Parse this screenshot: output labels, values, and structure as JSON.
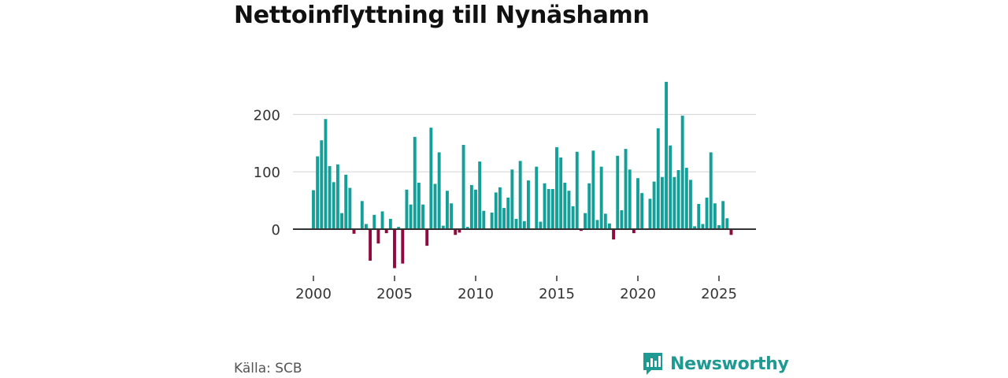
{
  "chart_data": {
    "type": "bar",
    "title": "Nettoinflyttning till Nynäshamn",
    "xlabel": "",
    "ylabel": "",
    "x_start": 2000,
    "x_step": 0.25,
    "ylim": [
      -70,
      260
    ],
    "x_ticks": [
      "2000",
      "2005",
      "2010",
      "2015",
      "2020",
      "2025"
    ],
    "y_ticks": [
      0,
      100,
      200
    ],
    "colors": {
      "positive": "#14a098",
      "negative": "#900a3e",
      "grid": "#d9d9d9",
      "zero_line": "#333333"
    },
    "values": [
      68,
      127,
      155,
      192,
      110,
      82,
      113,
      28,
      95,
      72,
      -8,
      0,
      49,
      9,
      -55,
      25,
      -25,
      31,
      -7,
      18,
      -68,
      4,
      -60,
      69,
      43,
      161,
      81,
      43,
      -29,
      177,
      79,
      134,
      6,
      67,
      45,
      -10,
      -6,
      147,
      4,
      77,
      69,
      118,
      32,
      0,
      29,
      64,
      73,
      37,
      55,
      104,
      18,
      119,
      14,
      85,
      0,
      109,
      13,
      80,
      70,
      70,
      143,
      125,
      81,
      67,
      40,
      135,
      -3,
      28,
      80,
      137,
      16,
      109,
      27,
      10,
      -18,
      128,
      33,
      140,
      104,
      -7,
      89,
      63,
      0,
      53,
      83,
      176,
      91,
      257,
      146,
      91,
      103,
      198,
      107,
      86,
      5,
      44,
      9,
      55,
      134,
      45,
      7,
      49,
      19,
      -10
    ]
  },
  "footer": {
    "source": "Källa: SCB",
    "brand": "Newsworthy"
  }
}
